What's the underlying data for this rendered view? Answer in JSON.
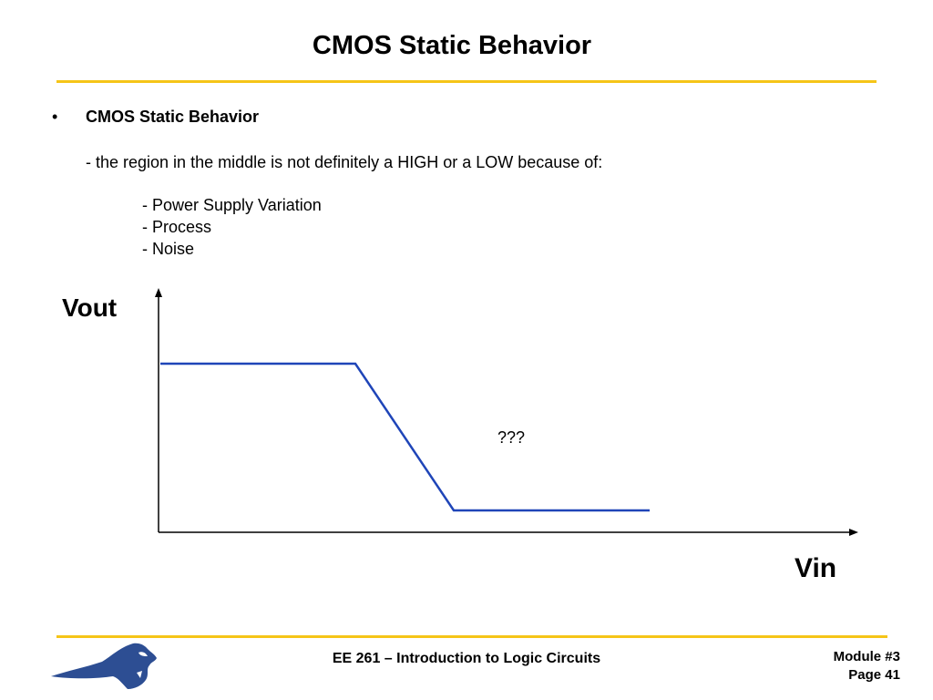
{
  "slide": {
    "title": "CMOS Static Behavior",
    "bullet_symbol": "•",
    "bullet_heading": "CMOS Static Behavior",
    "description": "- the region in the middle is not definitely a HIGH or a LOW because of:",
    "sub_items": [
      "- Power Supply Variation",
      "- Process",
      "- Noise"
    ]
  },
  "graph": {
    "y_axis_label": "Vout",
    "x_axis_label": "Vin",
    "annotation": "???",
    "line_color": "#1f45b8"
  },
  "footer": {
    "course": "EE 261 – Introduction to Logic Circuits",
    "module": "Module #3",
    "page": "Page 41"
  },
  "theme": {
    "accent_rule": "#f5c518",
    "logo_blue": "#2d4e93"
  }
}
